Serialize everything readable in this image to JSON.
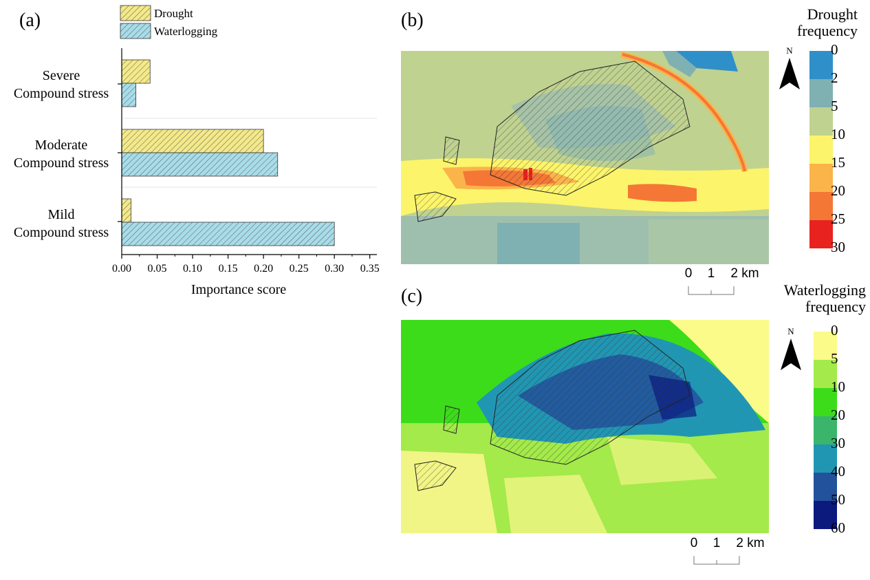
{
  "panels": {
    "a": "(a)",
    "b": "(b)",
    "c": "(c)"
  },
  "chart_data": {
    "type": "bar",
    "orientation": "horizontal",
    "xlabel": "Importance score",
    "xlim": [
      0,
      0.36
    ],
    "xticks": [
      "0.00",
      "0.05",
      "0.10",
      "0.15",
      "0.20",
      "0.25",
      "0.30",
      "0.35"
    ],
    "categories": [
      {
        "line1": "Severe",
        "line2": "Compound stress"
      },
      {
        "line1": "Moderate",
        "line2": "Compound stress"
      },
      {
        "line1": "Mild",
        "line2": "Compound stress"
      }
    ],
    "series": [
      {
        "name": "Drought",
        "color": "#f3e98a",
        "values": [
          0.04,
          0.2,
          0.013
        ]
      },
      {
        "name": "Waterlogging",
        "color": "#a8dce9",
        "values": [
          0.02,
          0.22,
          0.3
        ]
      }
    ],
    "legend": "top"
  },
  "map_b": {
    "legend_title": [
      "Drought",
      "frequency"
    ],
    "ticks": [
      "0",
      "2",
      "5",
      "10",
      "15",
      "20",
      "25",
      "30"
    ],
    "colors": [
      "#2f8fc9",
      "#7fb1b3",
      "#c0d290",
      "#fcf46a",
      "#fbb449",
      "#f47736",
      "#e8221f"
    ],
    "scale_labels": [
      "0",
      "1",
      "2 km"
    ],
    "north": "N"
  },
  "map_c": {
    "legend_title": [
      "Waterlogging",
      "frequency"
    ],
    "ticks": [
      "0",
      "5",
      "10",
      "20",
      "30",
      "40",
      "50",
      "60"
    ],
    "colors": [
      "#fbfb8a",
      "#a3ea4a",
      "#3ddc1a",
      "#3ab56b",
      "#2196b3",
      "#22529b",
      "#0c197d"
    ],
    "scale_labels": [
      "0",
      "1",
      "2 km"
    ],
    "north": "N"
  }
}
